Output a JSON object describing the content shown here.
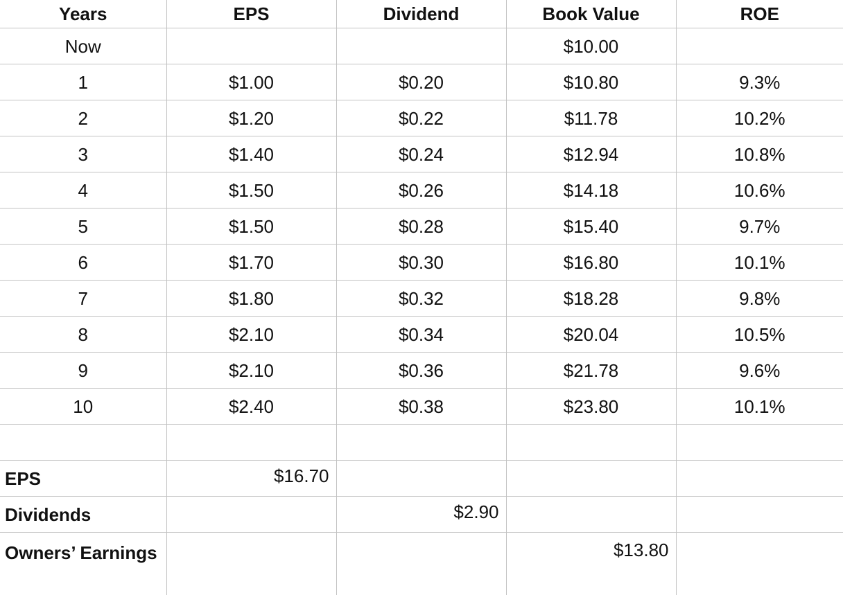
{
  "table": {
    "headers": [
      "Years",
      "EPS",
      "Dividend",
      "Book Value",
      "ROE"
    ],
    "rows": [
      [
        "Now",
        "",
        "",
        "$10.00",
        ""
      ],
      [
        "1",
        "$1.00",
        "$0.20",
        "$10.80",
        "9.3%"
      ],
      [
        "2",
        "$1.20",
        "$0.22",
        "$11.78",
        "10.2%"
      ],
      [
        "3",
        "$1.40",
        "$0.24",
        "$12.94",
        "10.8%"
      ],
      [
        "4",
        "$1.50",
        "$0.26",
        "$14.18",
        "10.6%"
      ],
      [
        "5",
        "$1.50",
        "$0.28",
        "$15.40",
        "9.7%"
      ],
      [
        "6",
        "$1.70",
        "$0.30",
        "$16.80",
        "10.1%"
      ],
      [
        "7",
        "$1.80",
        "$0.32",
        "$18.28",
        "9.8%"
      ],
      [
        "8",
        "$2.10",
        "$0.34",
        "$20.04",
        "10.5%"
      ],
      [
        "9",
        "$2.10",
        "$0.36",
        "$21.78",
        "9.6%"
      ],
      [
        "10",
        "$2.40",
        "$0.38",
        "$23.80",
        "10.1%"
      ]
    ]
  },
  "summary": {
    "eps_label": "EPS",
    "eps_total": "$16.70",
    "dividends_label": "Dividends",
    "dividends_total": "$2.90",
    "owners_label": "Owners’ Earnings",
    "owners_total": "$13.80"
  }
}
